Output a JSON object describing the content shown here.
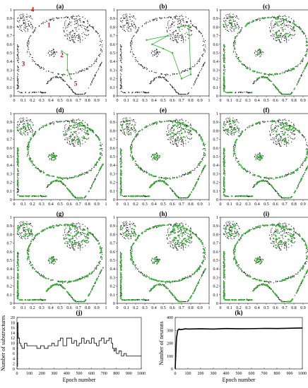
{
  "chart_data": [
    {
      "type": "scatter",
      "label": "(a)",
      "xlim": [
        0,
        1
      ],
      "ylim": [
        0,
        1
      ],
      "xticks": [
        "0",
        "0.1",
        "0.2",
        "0.3",
        "0.4",
        "0.5",
        "0.6",
        "0.7",
        "0.8",
        "0.9",
        "1"
      ],
      "yticks": [
        "0",
        "0.1",
        "0.2",
        "0.3",
        "0.4",
        "0.5",
        "0.6",
        "0.7",
        "0.8",
        "0.9",
        "1"
      ],
      "annotations": [
        {
          "text": "1",
          "x": 0.38,
          "y": 0.8
        },
        {
          "text": "2",
          "x": 0.52,
          "y": 0.45
        },
        {
          "text": "3",
          "x": 0.1,
          "y": 0.35
        },
        {
          "text": "4",
          "x": 0.2,
          "y": 0.98
        },
        {
          "text": "5",
          "x": 0.67,
          "y": 0.12
        }
      ],
      "neurons": [
        [
          0.52,
          0.52
        ],
        [
          0.58,
          0.48
        ],
        [
          0.58,
          0.3
        ],
        [
          0.62,
          0.2
        ]
      ]
    },
    {
      "type": "scatter",
      "label": "(b)",
      "xlim": [
        0,
        1
      ],
      "ylim": [
        0,
        1
      ],
      "xticks": [
        "0",
        "0.1",
        "0.2",
        "0.3",
        "0.4",
        "0.5",
        "0.6",
        "0.7",
        "0.8",
        "0.9",
        "1"
      ],
      "yticks": [
        "0",
        "0.1",
        "0.2",
        "0.3",
        "0.4",
        "0.5",
        "0.6",
        "0.7",
        "0.8",
        "0.9",
        "1"
      ],
      "neurons": [
        [
          0.32,
          0.65
        ],
        [
          0.55,
          0.7
        ],
        [
          0.38,
          0.6
        ],
        [
          0.5,
          0.55
        ],
        [
          0.6,
          0.5
        ],
        [
          0.7,
          0.2
        ],
        [
          0.8,
          0.25
        ],
        [
          0.78,
          0.82
        ],
        [
          0.66,
          0.8
        ]
      ]
    },
    {
      "type": "scatter",
      "label": "(c)",
      "xlim": [
        0,
        1
      ],
      "ylim": [
        0,
        1
      ],
      "stage": 1
    },
    {
      "type": "scatter",
      "label": "(d)",
      "xlim": [
        0,
        1
      ],
      "ylim": [
        0,
        1
      ],
      "stage": 2
    },
    {
      "type": "scatter",
      "label": "(e)",
      "xlim": [
        0,
        1
      ],
      "ylim": [
        0,
        1
      ],
      "stage": 2
    },
    {
      "type": "scatter",
      "label": "(f)",
      "xlim": [
        0,
        1
      ],
      "ylim": [
        0,
        1
      ],
      "stage": 2
    },
    {
      "type": "scatter",
      "label": "(g)",
      "xlim": [
        0,
        1
      ],
      "ylim": [
        0,
        1
      ],
      "stage": 3
    },
    {
      "type": "scatter",
      "label": "(h)",
      "xlim": [
        0,
        1
      ],
      "ylim": [
        0,
        1
      ],
      "stage": 3
    },
    {
      "type": "scatter",
      "label": "(i)",
      "xlim": [
        0,
        1
      ],
      "ylim": [
        0,
        1
      ],
      "stage": 3
    },
    {
      "type": "line",
      "label": "(j)",
      "xlabel": "Epoch number",
      "ylabel": "Number of substructures",
      "xlim": [
        0,
        1000
      ],
      "ylim": [
        0,
        20
      ],
      "xticks": [
        "0",
        "100",
        "200",
        "300",
        "400",
        "500",
        "600",
        "700",
        "800",
        "900",
        "1000"
      ],
      "yticks": [
        "0",
        "2",
        "4",
        "6",
        "8",
        "10",
        "12",
        "14",
        "16",
        "18",
        "20"
      ],
      "x": [
        0,
        5,
        8,
        10,
        20,
        30,
        40,
        60,
        80,
        100,
        130,
        160,
        190,
        220,
        250,
        280,
        300,
        330,
        350,
        370,
        400,
        420,
        440,
        460,
        480,
        500,
        520,
        540,
        560,
        580,
        600,
        620,
        640,
        660,
        680,
        700,
        720,
        740,
        760,
        770,
        780,
        790,
        800,
        820,
        840,
        860,
        880,
        900,
        930,
        960,
        1000
      ],
      "y": [
        1,
        18,
        14,
        12,
        10,
        9,
        8,
        10,
        9,
        9,
        9,
        8,
        9,
        8,
        9,
        10,
        9,
        11,
        12,
        9,
        12,
        12,
        10,
        11,
        9,
        10,
        12,
        10,
        11,
        10,
        12,
        10,
        9,
        11,
        12,
        10,
        11,
        12,
        10,
        8,
        7,
        8,
        6,
        7,
        5,
        6,
        5,
        5,
        5,
        5,
        5
      ]
    },
    {
      "type": "line",
      "label": "(k)",
      "xlabel": "Epoch number",
      "ylabel": "Number of neurons",
      "xlim": [
        0,
        1000
      ],
      "ylim": [
        0,
        400
      ],
      "xticks": [
        "0",
        "100",
        "200",
        "300",
        "400",
        "500",
        "600",
        "700",
        "800",
        "900",
        "1000"
      ],
      "yticks": [
        "0",
        "100",
        "200",
        "300",
        "400"
      ],
      "x": [
        0,
        10,
        20,
        30,
        40,
        60,
        80,
        100,
        200,
        300,
        400,
        500,
        600,
        700,
        800,
        900,
        1000
      ],
      "y": [
        2,
        240,
        300,
        310,
        305,
        308,
        312,
        310,
        312,
        310,
        314,
        312,
        313,
        315,
        314,
        316,
        318
      ]
    }
  ]
}
